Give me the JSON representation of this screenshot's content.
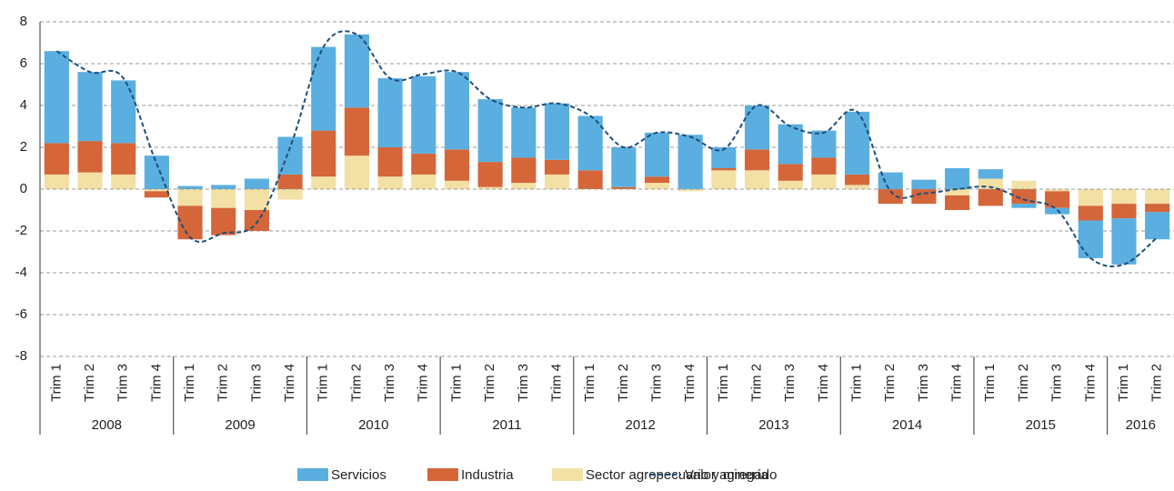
{
  "chart_data": {
    "type": "bar",
    "stacked": true,
    "groups": [
      {
        "name": "2008",
        "categories": [
          "Trim 1",
          "Trim 2",
          "Trim 3",
          "Trim 4"
        ]
      },
      {
        "name": "2009",
        "categories": [
          "Trim 1",
          "Trim 2",
          "Trim 3",
          "Trim 4"
        ]
      },
      {
        "name": "2010",
        "categories": [
          "Trim 1",
          "Trim 2",
          "Trim 3",
          "Trim 4"
        ]
      },
      {
        "name": "2011",
        "categories": [
          "Trim 1",
          "Trim 2",
          "Trim 3",
          "Trim 4"
        ]
      },
      {
        "name": "2012",
        "categories": [
          "Trim 1",
          "Trim 2",
          "Trim 3",
          "Trim 4"
        ]
      },
      {
        "name": "2013",
        "categories": [
          "Trim 1",
          "Trim 2",
          "Trim 3",
          "Trim 4"
        ]
      },
      {
        "name": "2014",
        "categories": [
          "Trim 1",
          "Trim 2",
          "Trim 3",
          "Trim 4"
        ]
      },
      {
        "name": "2015",
        "categories": [
          "Trim 1",
          "Trim 2",
          "Trim 3",
          "Trim 4"
        ]
      },
      {
        "name": "2016",
        "categories": [
          "Trim 1",
          "Trim 2"
        ]
      }
    ],
    "series": [
      {
        "name": "Servicios",
        "color": "#5aafe0",
        "type": "bar",
        "values": [
          4.4,
          3.3,
          3.0,
          1.6,
          0.15,
          0.2,
          0.5,
          1.8,
          4.0,
          3.5,
          3.3,
          3.7,
          3.7,
          3.0,
          2.4,
          2.7,
          2.6,
          1.9,
          2.1,
          2.6,
          1.0,
          2.1,
          1.9,
          1.3,
          3.0,
          0.8,
          0.45,
          1.0,
          0.45,
          -0.2,
          -0.3,
          -1.8,
          -2.2,
          -1.3
        ]
      },
      {
        "name": "Industria",
        "color": "#d4663a",
        "type": "bar",
        "values": [
          1.5,
          1.5,
          1.5,
          -0.3,
          -1.6,
          -1.3,
          -1.0,
          0.7,
          2.2,
          2.3,
          1.4,
          1.0,
          1.5,
          1.2,
          1.2,
          0.7,
          0.9,
          0.1,
          0.3,
          0.0,
          0.1,
          1.0,
          0.8,
          0.8,
          0.5,
          -0.7,
          -0.7,
          -0.7,
          -0.8,
          -0.7,
          -0.8,
          -0.7,
          -0.7,
          -0.4
        ]
      },
      {
        "name": "Sector agropecuario y minería",
        "color": "#f3e0a5",
        "type": "bar",
        "values": [
          0.7,
          0.8,
          0.7,
          -0.1,
          -0.8,
          -0.9,
          -1.0,
          -0.5,
          0.6,
          1.6,
          0.6,
          0.7,
          0.4,
          0.1,
          0.3,
          0.7,
          0.0,
          0.0,
          0.3,
          -0.1,
          0.9,
          0.9,
          0.4,
          0.7,
          0.2,
          0.0,
          0.0,
          -0.3,
          0.5,
          0.4,
          -0.1,
          -0.8,
          -0.7,
          -0.7
        ]
      },
      {
        "name": "Valor agregado",
        "color": "#1f4e79",
        "type": "line",
        "values": [
          6.6,
          5.6,
          5.3,
          1.2,
          -2.3,
          -2.1,
          -1.6,
          2.0,
          6.8,
          7.4,
          5.3,
          5.5,
          5.6,
          4.3,
          3.9,
          4.1,
          3.5,
          2.0,
          2.7,
          2.5,
          1.9,
          4.0,
          3.0,
          2.7,
          3.7,
          -0.1,
          -0.2,
          0.0,
          0.1,
          -0.5,
          -1.0,
          -3.3,
          -3.6,
          -2.3
        ]
      }
    ],
    "ylim": [
      -8,
      8
    ],
    "yticks": [
      -8,
      -6,
      -4,
      -2,
      0,
      2,
      4,
      6,
      8
    ],
    "grid": true
  }
}
